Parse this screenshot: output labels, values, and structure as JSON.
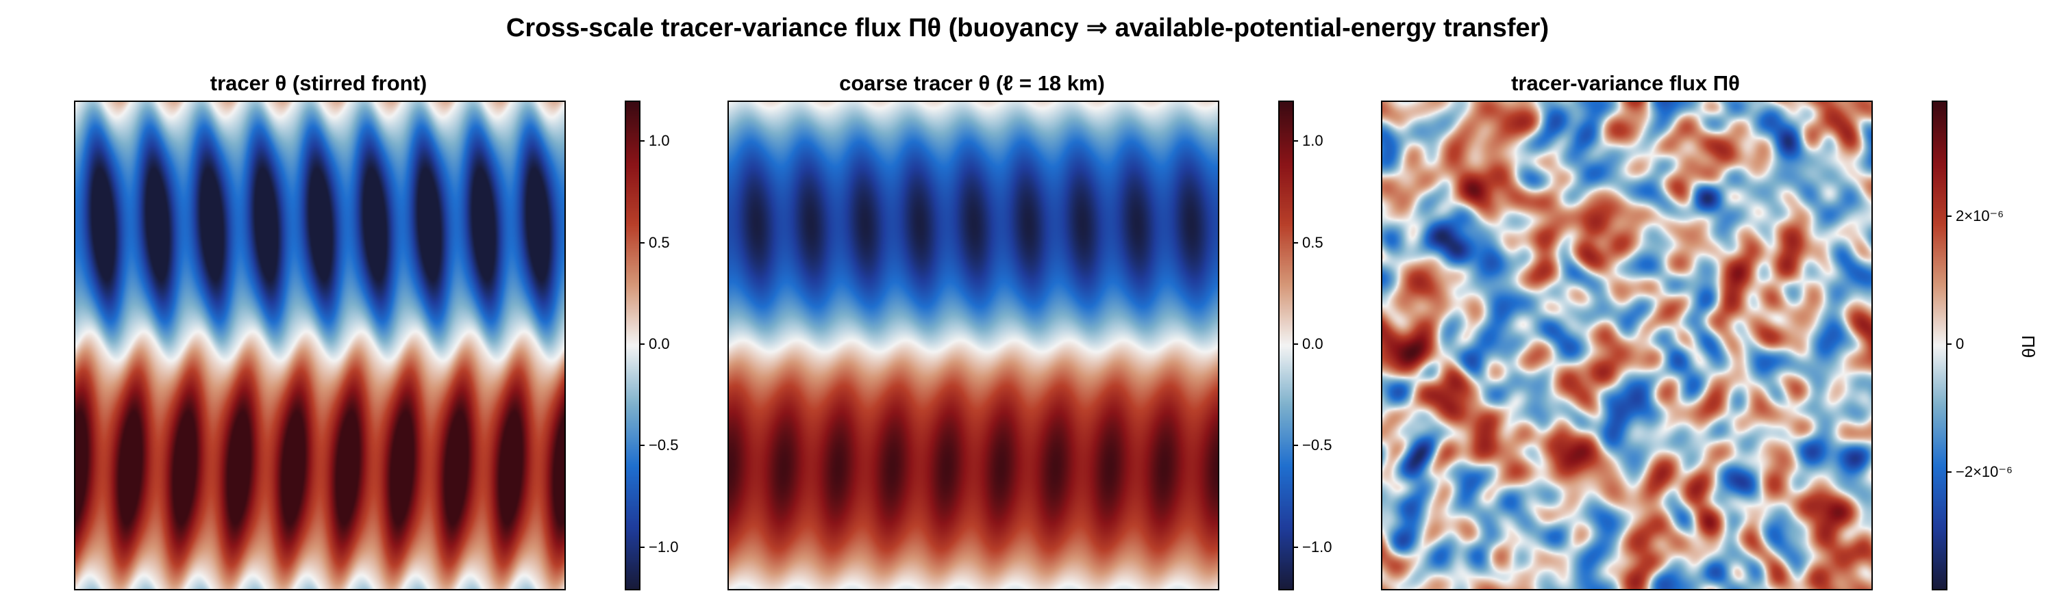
{
  "title": "Cross-scale tracer-variance flux  Πθ  (buoyancy ⇒ available-potential-energy transfer)",
  "colormap": {
    "name": "balance (diverging)",
    "stops": [
      "#181b3a",
      "#1f3d9c",
      "#1f6fcf",
      "#7cb0cc",
      "#f4f4f4",
      "#d69878",
      "#b8402a",
      "#8a1418",
      "#3c0a12"
    ]
  },
  "chart_data": [
    {
      "type": "heatmap",
      "title": "tracer θ (stirred front)",
      "field": "stirred meridional front: θ ≈ -sin(2πy) with ~9 zonal ripples",
      "clim": [
        -1.2,
        1.2
      ],
      "colorbar": {
        "ticks": [
          -1.0,
          -0.5,
          0.0,
          0.5,
          1.0
        ],
        "labels": [
          "−1.0",
          "−0.5",
          "0.0",
          "0.5",
          "1.0"
        ],
        "label": ""
      }
    },
    {
      "type": "heatmap",
      "title": "coarse tracer θ  (ℓ = 18 km)",
      "field": "filtered front: same as left panel, ripples smoothed",
      "clim": [
        -1.2,
        1.2
      ],
      "colorbar": {
        "ticks": [
          -1.0,
          -0.5,
          0.0,
          0.5,
          1.0
        ],
        "labels": [
          "−1.0",
          "−0.5",
          "0.0",
          "0.5",
          "1.0"
        ],
        "label": ""
      }
    },
    {
      "type": "heatmap",
      "title": "tracer-variance flux Πθ",
      "field": "small-scale random patches of both signs",
      "clim": [
        -3.8e-06,
        3.8e-06
      ],
      "colorbar": {
        "ticks": [
          -2e-06,
          0,
          2e-06
        ],
        "labels": [
          "−2×10⁻⁶",
          "0",
          "2×10⁻⁶"
        ],
        "label": "Πθ"
      }
    }
  ]
}
